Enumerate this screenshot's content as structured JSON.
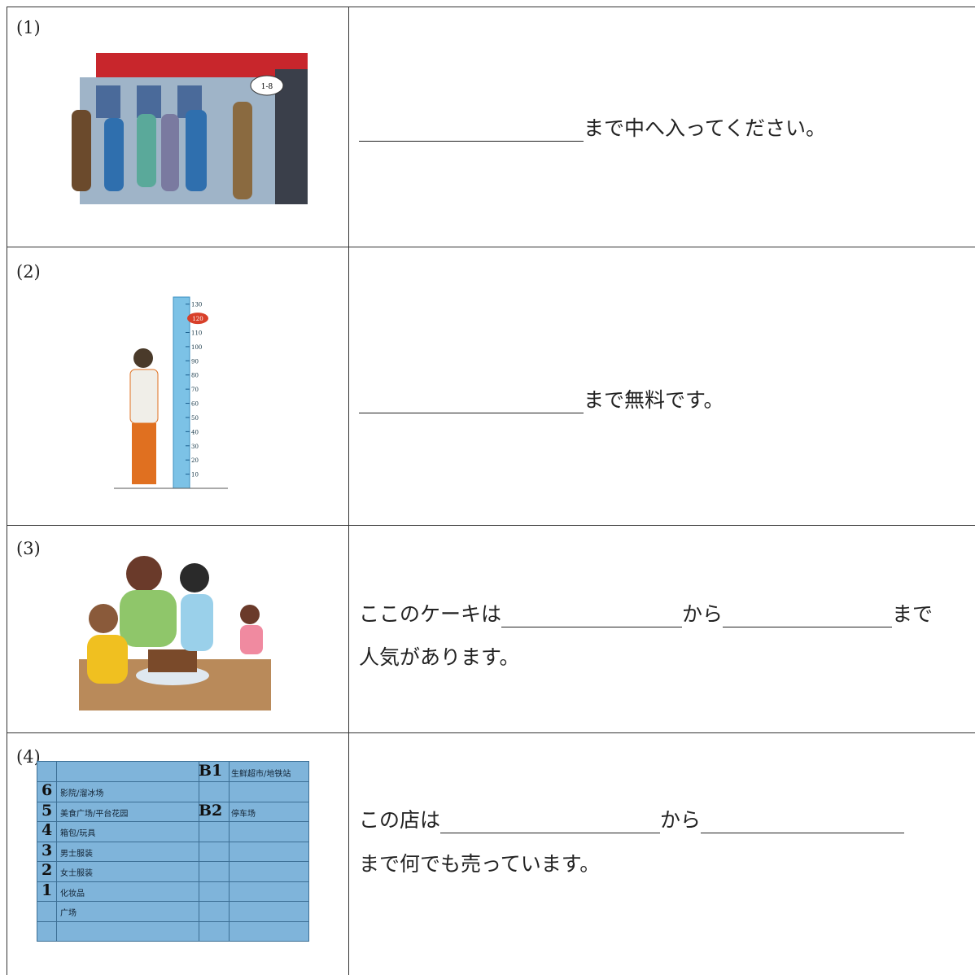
{
  "rows": [
    {
      "label": "(1)",
      "lines": [
        [
          "まで中へ入ってください。"
        ]
      ],
      "bubble": "1-8"
    },
    {
      "label": "(2)",
      "lines": [
        [
          "まで無料です。"
        ]
      ],
      "ruler": {
        "marker": 120,
        "ticks": [
          130,
          110,
          100,
          90,
          80,
          70,
          60,
          50,
          40,
          30,
          20,
          10
        ]
      }
    },
    {
      "label": "(3)",
      "lines": [
        [
          "ここのケーキは",
          "から",
          "まで"
        ],
        [
          "人気があります。"
        ]
      ]
    },
    {
      "label": "(4)",
      "lines": [
        [
          "この店は",
          "から"
        ],
        [
          "まで何でも売っています。"
        ]
      ],
      "directory": {
        "left": [
          {
            "floor": "6",
            "shop": "影院/溜冰场"
          },
          {
            "floor": "5",
            "shop": "美食广场/平台花园"
          },
          {
            "floor": "4",
            "shop": "箱包/玩具"
          },
          {
            "floor": "3",
            "shop": "男士服装"
          },
          {
            "floor": "2",
            "shop": "女士服装"
          },
          {
            "floor": "1",
            "shop": "化妆品"
          },
          {
            "shop": "广场"
          }
        ],
        "right": [
          {
            "floor": "B1",
            "shop": "生鲜超市/地铁站"
          },
          {
            "floor": "B2",
            "shop": "停车场"
          }
        ]
      }
    }
  ]
}
